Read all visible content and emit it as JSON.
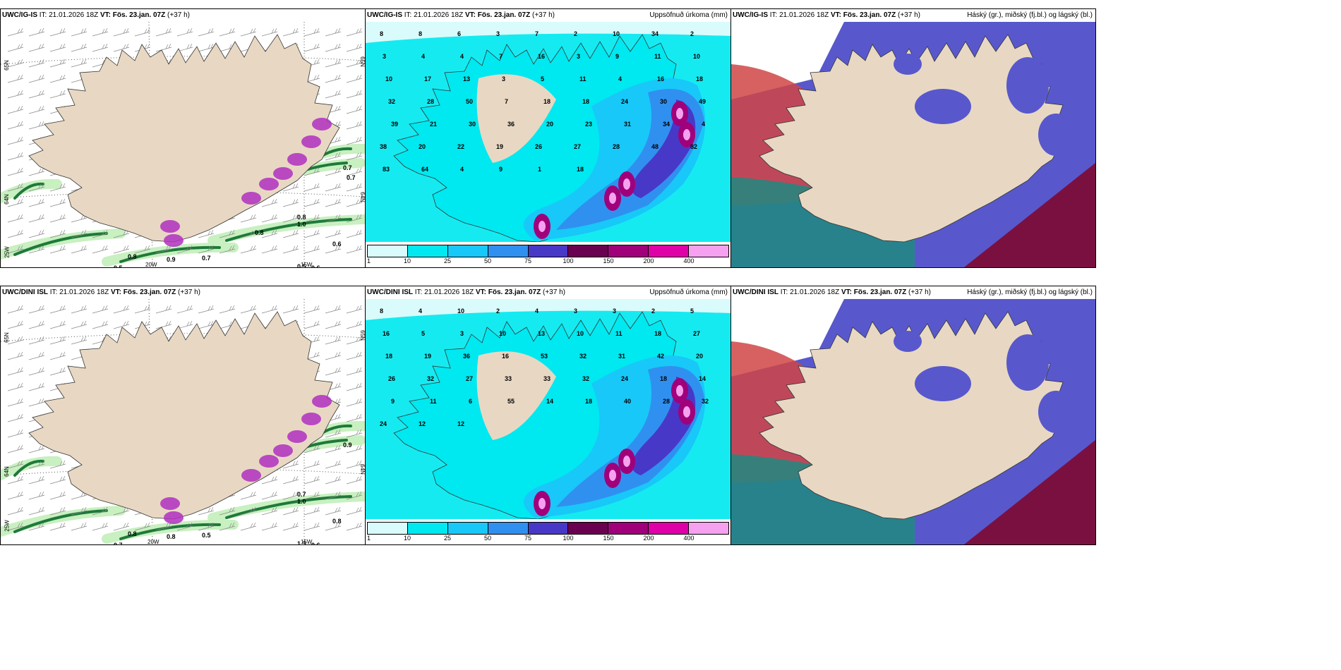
{
  "rows": [
    {
      "model": "UWC/IG-IS",
      "panels": [
        {
          "type": "wind",
          "init": "IT: 21.01.2026 18Z",
          "valid": "VT: Fös. 23.jan. 07Z",
          "lead": "(+37 h)",
          "right": "",
          "values": [
            "0.5",
            "0.7",
            "0.6",
            "0.8",
            "1.0",
            "0.8",
            "0.7",
            "0.9",
            "0.5",
            "0.6",
            "0.8",
            "0.7"
          ],
          "axes": {
            "lat1": "65N",
            "lat2": "64N",
            "lat3": "25W",
            "lon1": "20W",
            "lon2": "15W",
            "lat_right": "65N",
            "lat_right2": "64N"
          }
        },
        {
          "type": "precip",
          "init": "IT: 21.01.2026 18Z",
          "valid": "VT: Fös. 23.jan. 07Z",
          "lead": "(+37 h)",
          "right": "Uppsöfnuð úrkoma (mm)",
          "values": [
            "8",
            "8",
            "6",
            "3",
            "7",
            "2",
            "10",
            "34",
            "2",
            "3",
            "4",
            "4",
            "7",
            "16",
            "3",
            "9",
            "11",
            "10",
            "10",
            "17",
            "13",
            "3",
            "5",
            "11",
            "4",
            "16",
            "18",
            "32",
            "28",
            "50",
            "7",
            "18",
            "18",
            "24",
            "30",
            "49",
            "39",
            "21",
            "30",
            "36",
            "20",
            "23",
            "31",
            "34",
            "4",
            "38",
            "20",
            "22",
            "19",
            "26",
            "27",
            "28",
            "48",
            "82",
            "83",
            "64",
            "4",
            "9",
            "1",
            "18"
          ],
          "legend": [
            "1",
            "10",
            "25",
            "50",
            "75",
            "100",
            "150",
            "200",
            "400"
          ]
        },
        {
          "type": "cloud",
          "init": "IT: 21.01.2026 18Z",
          "valid": "VT: Fös. 23.jan. 07Z",
          "lead": "(+37 h)",
          "right": "Háský (gr.), miðský (fj.bl.) og lágský (bl.)"
        }
      ]
    },
    {
      "model": "UWC/DINI ISL",
      "panels": [
        {
          "type": "wind",
          "init": "IT: 21.01.2026 18Z",
          "valid": "VT: Fös. 23.jan. 07Z",
          "lead": "(+37 h)",
          "right": "",
          "values": [
            "0.7",
            "0.5",
            "0.8",
            "0.7",
            "1.0",
            "0.8",
            "0.9",
            "0.8",
            "1.3",
            "0.6"
          ],
          "axes": {
            "lat1": "65N",
            "lat2": "64N",
            "lat3": "25W",
            "lon1": "20W",
            "lon2": "15W",
            "lat_right": "65N",
            "lat_right2": "64N"
          }
        },
        {
          "type": "precip",
          "init": "IT: 21.01.2026 18Z",
          "valid": "VT: Fös. 23.jan. 07Z",
          "lead": "(+37 h)",
          "right": "Uppsöfnuð úrkoma (mm)",
          "values": [
            "8",
            "4",
            "10",
            "2",
            "4",
            "3",
            "3",
            "2",
            "5",
            "16",
            "5",
            "3",
            "10",
            "13",
            "10",
            "11",
            "18",
            "27",
            "18",
            "19",
            "36",
            "16",
            "53",
            "32",
            "31",
            "42",
            "20",
            "26",
            "32",
            "27",
            "33",
            "33",
            "32",
            "24",
            "18",
            "14",
            "9",
            "11",
            "6",
            "55",
            "14",
            "18",
            "40",
            "28",
            "32",
            "24",
            "12",
            "12"
          ],
          "legend": [
            "1",
            "10",
            "25",
            "50",
            "75",
            "100",
            "150",
            "200",
            "400"
          ]
        },
        {
          "type": "cloud",
          "init": "IT: 21.01.2026 18Z",
          "valid": "VT: Fös. 23.jan. 07Z",
          "lead": "(+37 h)",
          "right": "Háský (gr.), miðský (fj.bl.) og lágský (bl.)"
        }
      ]
    }
  ],
  "colors": {
    "land": "#e8d8c3",
    "precip_scale": [
      "#d9fbfb",
      "#00e8f0",
      "#18c8f8",
      "#3090f0",
      "#4838c8",
      "#6a0050",
      "#a0007a",
      "#e000a8",
      "#f6a0f0"
    ],
    "cloud_high": "#d04545",
    "cloud_mid": "#5858cc",
    "cloud_low": "#208a80",
    "cloud_dark": "#7a1040",
    "wind_green_light": "#c8f0c0",
    "wind_green_dark": "#1e7a3a",
    "wind_magenta": "#b030c0"
  }
}
